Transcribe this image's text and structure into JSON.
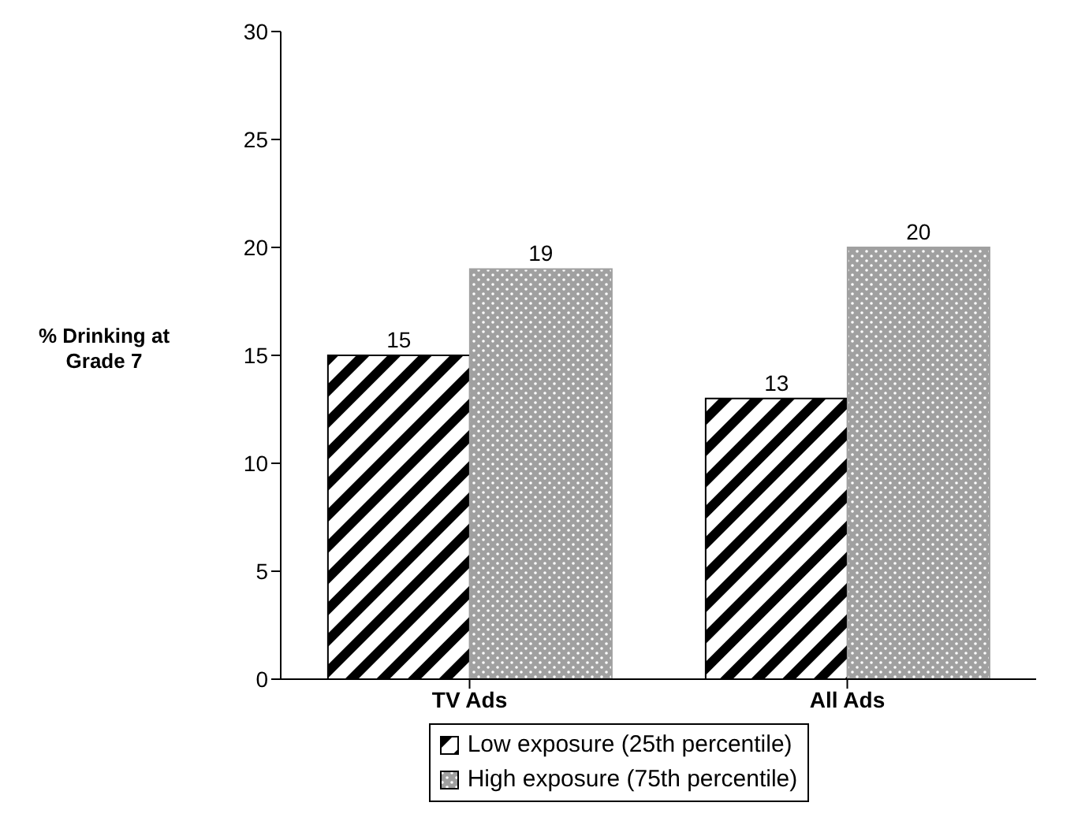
{
  "chart_data": {
    "type": "bar",
    "ylabel": "% Drinking at Grade 7",
    "categories": [
      "TV Ads",
      "All Ads"
    ],
    "series": [
      {
        "name": "Low exposure (25th percentile)",
        "color": "#000000",
        "values": [
          15,
          13
        ]
      },
      {
        "name": "High exposure (75th percentile)",
        "color": "#a0a0a0",
        "values": [
          19,
          20
        ]
      }
    ],
    "ylim": [
      0,
      30
    ],
    "yticks": [
      0,
      5,
      10,
      15,
      20,
      25,
      30
    ],
    "data_labels": true,
    "grid": false,
    "legend": "bottom"
  }
}
